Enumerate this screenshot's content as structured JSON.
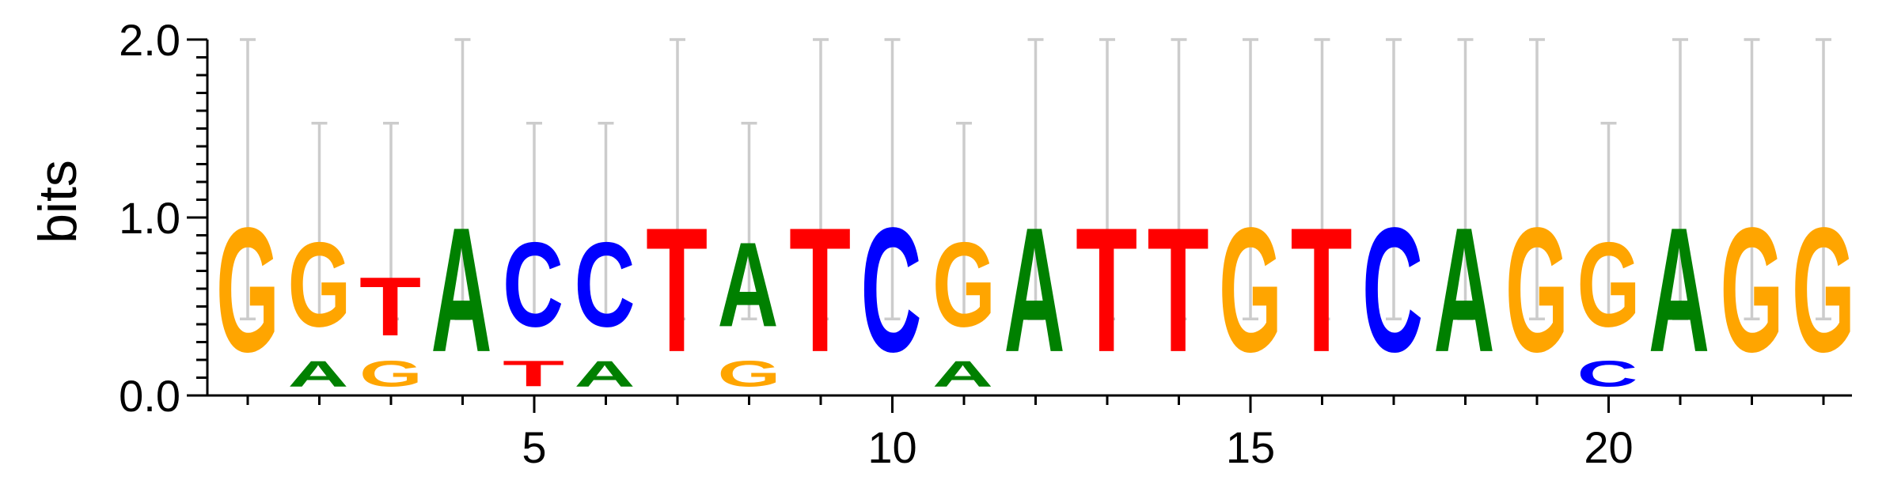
{
  "chart_data": {
    "type": "sequence-logo",
    "ylabel": "bits",
    "ylim": [
      0,
      2
    ],
    "y_ticks": [
      "0.0",
      "1.0",
      "2.0"
    ],
    "y_tick_values": [
      0,
      1,
      2
    ],
    "x_ticks": [
      "5",
      "10",
      "15",
      "20"
    ],
    "x_tick_values": [
      5,
      10,
      15,
      20
    ],
    "num_positions": 23,
    "colors": {
      "A": "#008000",
      "C": "#0000ff",
      "G": "#ffa500",
      "T": "#ff0000"
    },
    "error_bar_color": "#cccccc",
    "positions": [
      {
        "pos": 1,
        "err": [
          0.43,
          2.0
        ],
        "stack": [
          [
            "G",
            1.06
          ]
        ]
      },
      {
        "pos": 2,
        "err": [
          0.43,
          1.53
        ],
        "stack": [
          [
            "A",
            0.22
          ],
          [
            "G",
            0.72
          ]
        ]
      },
      {
        "pos": 3,
        "err": [
          0.43,
          1.53
        ],
        "stack": [
          [
            "G",
            0.22
          ],
          [
            "T",
            0.5
          ]
        ]
      },
      {
        "pos": 4,
        "err": [
          0.43,
          2.0
        ],
        "stack": [
          [
            "A",
            1.06
          ]
        ]
      },
      {
        "pos": 5,
        "err": [
          0.43,
          1.53
        ],
        "stack": [
          [
            "T",
            0.22
          ],
          [
            "C",
            0.72
          ]
        ]
      },
      {
        "pos": 6,
        "err": [
          0.43,
          1.53
        ],
        "stack": [
          [
            "A",
            0.22
          ],
          [
            "C",
            0.72
          ]
        ]
      },
      {
        "pos": 7,
        "err": [
          0.43,
          2.0
        ],
        "stack": [
          [
            "T",
            1.06
          ]
        ]
      },
      {
        "pos": 8,
        "err": [
          0.43,
          1.53
        ],
        "stack": [
          [
            "G",
            0.22
          ],
          [
            "A",
            0.72
          ]
        ]
      },
      {
        "pos": 9,
        "err": [
          0.43,
          2.0
        ],
        "stack": [
          [
            "T",
            1.06
          ]
        ]
      },
      {
        "pos": 10,
        "err": [
          0.43,
          2.0
        ],
        "stack": [
          [
            "C",
            1.06
          ]
        ]
      },
      {
        "pos": 11,
        "err": [
          0.43,
          1.53
        ],
        "stack": [
          [
            "A",
            0.22
          ],
          [
            "G",
            0.72
          ]
        ]
      },
      {
        "pos": 12,
        "err": [
          0.43,
          2.0
        ],
        "stack": [
          [
            "A",
            1.06
          ]
        ]
      },
      {
        "pos": 13,
        "err": [
          0.43,
          2.0
        ],
        "stack": [
          [
            "T",
            1.06
          ]
        ]
      },
      {
        "pos": 14,
        "err": [
          0.43,
          2.0
        ],
        "stack": [
          [
            "T",
            1.06
          ]
        ]
      },
      {
        "pos": 15,
        "err": [
          0.43,
          2.0
        ],
        "stack": [
          [
            "G",
            1.06
          ]
        ]
      },
      {
        "pos": 16,
        "err": [
          0.43,
          2.0
        ],
        "stack": [
          [
            "T",
            1.06
          ]
        ]
      },
      {
        "pos": 17,
        "err": [
          0.43,
          2.0
        ],
        "stack": [
          [
            "C",
            1.06
          ]
        ]
      },
      {
        "pos": 18,
        "err": [
          0.43,
          2.0
        ],
        "stack": [
          [
            "A",
            1.06
          ]
        ]
      },
      {
        "pos": 19,
        "err": [
          0.43,
          2.0
        ],
        "stack": [
          [
            "G",
            1.06
          ]
        ]
      },
      {
        "pos": 20,
        "err": [
          0.43,
          1.53
        ],
        "stack": [
          [
            "C",
            0.22
          ],
          [
            "G",
            0.72
          ]
        ]
      },
      {
        "pos": 21,
        "err": [
          0.43,
          2.0
        ],
        "stack": [
          [
            "A",
            1.06
          ]
        ]
      },
      {
        "pos": 22,
        "err": [
          0.43,
          2.0
        ],
        "stack": [
          [
            "G",
            1.06
          ]
        ]
      },
      {
        "pos": 23,
        "err": [
          0.43,
          2.0
        ],
        "stack": [
          [
            "G",
            1.06
          ]
        ]
      }
    ]
  }
}
